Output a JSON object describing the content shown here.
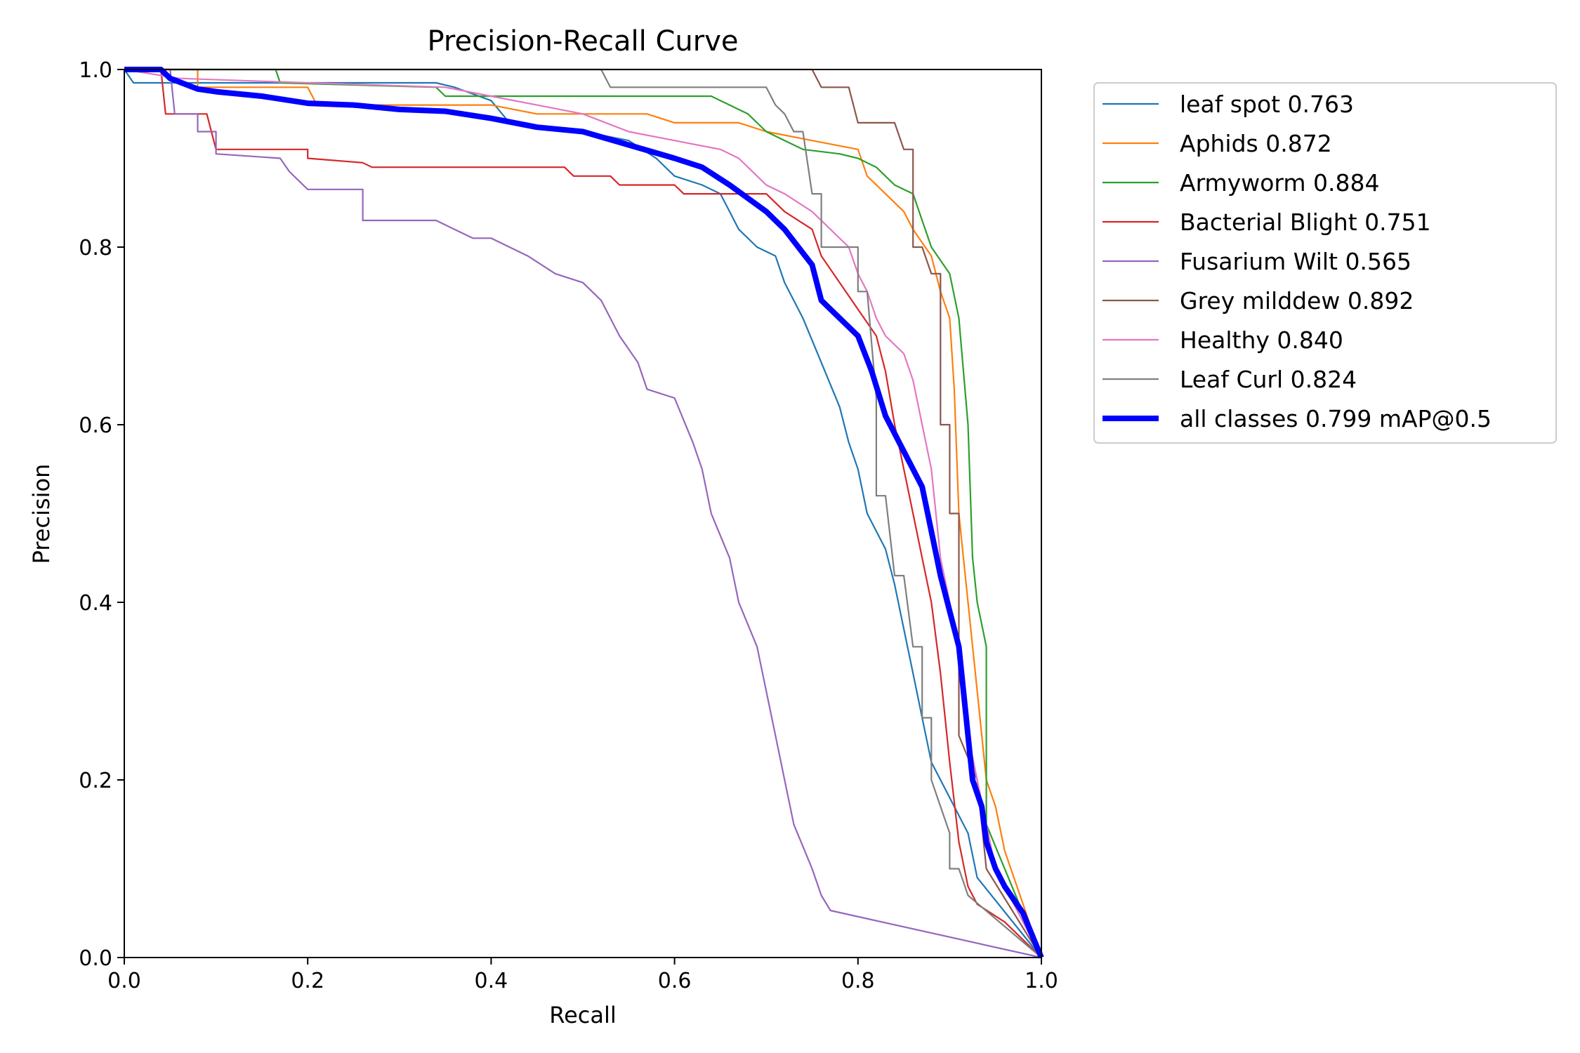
{
  "chart_data": {
    "type": "line",
    "title": "Precision-Recall Curve",
    "xlabel": "Recall",
    "ylabel": "Precision",
    "xlim": [
      0,
      1
    ],
    "ylim": [
      0,
      1
    ],
    "xticks": [
      "0.0",
      "0.2",
      "0.4",
      "0.6",
      "0.8",
      "1.0"
    ],
    "yticks": [
      "0.0",
      "0.2",
      "0.4",
      "0.6",
      "0.8",
      "1.0"
    ],
    "grid": false,
    "legend_position": "outside-top-right",
    "series": [
      {
        "name": "leaf spot 0.763",
        "color": "#1f77b4",
        "width": "thin",
        "points": [
          [
            0,
            1
          ],
          [
            0.01,
            0.985
          ],
          [
            0.1,
            0.985
          ],
          [
            0.34,
            0.985
          ],
          [
            0.36,
            0.98
          ],
          [
            0.4,
            0.965
          ],
          [
            0.42,
            0.94
          ],
          [
            0.5,
            0.93
          ],
          [
            0.55,
            0.92
          ],
          [
            0.58,
            0.9
          ],
          [
            0.6,
            0.88
          ],
          [
            0.63,
            0.87
          ],
          [
            0.65,
            0.86
          ],
          [
            0.66,
            0.84
          ],
          [
            0.67,
            0.82
          ],
          [
            0.69,
            0.8
          ],
          [
            0.71,
            0.79
          ],
          [
            0.72,
            0.76
          ],
          [
            0.74,
            0.72
          ],
          [
            0.76,
            0.67
          ],
          [
            0.78,
            0.62
          ],
          [
            0.79,
            0.58
          ],
          [
            0.8,
            0.55
          ],
          [
            0.81,
            0.5
          ],
          [
            0.83,
            0.46
          ],
          [
            0.84,
            0.42
          ],
          [
            0.85,
            0.37
          ],
          [
            0.86,
            0.32
          ],
          [
            0.87,
            0.27
          ],
          [
            0.88,
            0.22
          ],
          [
            0.9,
            0.18
          ],
          [
            0.92,
            0.14
          ],
          [
            0.93,
            0.09
          ],
          [
            1,
            0
          ]
        ]
      },
      {
        "name": "Aphids 0.872",
        "color": "#ff7f0e",
        "width": "thin",
        "points": [
          [
            0,
            1
          ],
          [
            0.08,
            1
          ],
          [
            0.08,
            0.98
          ],
          [
            0.2,
            0.98
          ],
          [
            0.21,
            0.96
          ],
          [
            0.4,
            0.96
          ],
          [
            0.45,
            0.95
          ],
          [
            0.57,
            0.95
          ],
          [
            0.6,
            0.94
          ],
          [
            0.67,
            0.94
          ],
          [
            0.7,
            0.93
          ],
          [
            0.75,
            0.92
          ],
          [
            0.8,
            0.91
          ],
          [
            0.81,
            0.88
          ],
          [
            0.83,
            0.86
          ],
          [
            0.85,
            0.84
          ],
          [
            0.86,
            0.82
          ],
          [
            0.88,
            0.79
          ],
          [
            0.89,
            0.75
          ],
          [
            0.9,
            0.72
          ],
          [
            0.905,
            0.64
          ],
          [
            0.91,
            0.5
          ],
          [
            0.92,
            0.4
          ],
          [
            0.93,
            0.3
          ],
          [
            0.94,
            0.2
          ],
          [
            0.95,
            0.17
          ],
          [
            0.96,
            0.12
          ],
          [
            1,
            0
          ]
        ]
      },
      {
        "name": "Armyworm 0.884",
        "color": "#2ca02c",
        "width": "thin",
        "points": [
          [
            0,
            1
          ],
          [
            0.165,
            1
          ],
          [
            0.17,
            0.985
          ],
          [
            0.34,
            0.98
          ],
          [
            0.35,
            0.97
          ],
          [
            0.64,
            0.97
          ],
          [
            0.66,
            0.96
          ],
          [
            0.68,
            0.95
          ],
          [
            0.7,
            0.93
          ],
          [
            0.72,
            0.92
          ],
          [
            0.74,
            0.91
          ],
          [
            0.78,
            0.905
          ],
          [
            0.8,
            0.9
          ],
          [
            0.82,
            0.89
          ],
          [
            0.84,
            0.87
          ],
          [
            0.86,
            0.86
          ],
          [
            0.87,
            0.83
          ],
          [
            0.88,
            0.8
          ],
          [
            0.9,
            0.77
          ],
          [
            0.91,
            0.72
          ],
          [
            0.92,
            0.6
          ],
          [
            0.925,
            0.45
          ],
          [
            0.93,
            0.4
          ],
          [
            0.94,
            0.35
          ],
          [
            0.94,
            0.15
          ],
          [
            1,
            0
          ]
        ]
      },
      {
        "name": "Bacterial Blight 0.751",
        "color": "#d62728",
        "width": "thin",
        "points": [
          [
            0,
            1
          ],
          [
            0.04,
            1
          ],
          [
            0.045,
            0.95
          ],
          [
            0.09,
            0.95
          ],
          [
            0.1,
            0.91
          ],
          [
            0.2,
            0.91
          ],
          [
            0.2,
            0.9
          ],
          [
            0.26,
            0.895
          ],
          [
            0.27,
            0.89
          ],
          [
            0.48,
            0.89
          ],
          [
            0.49,
            0.88
          ],
          [
            0.53,
            0.88
          ],
          [
            0.54,
            0.87
          ],
          [
            0.6,
            0.87
          ],
          [
            0.61,
            0.86
          ],
          [
            0.7,
            0.86
          ],
          [
            0.72,
            0.84
          ],
          [
            0.75,
            0.82
          ],
          [
            0.76,
            0.79
          ],
          [
            0.78,
            0.76
          ],
          [
            0.8,
            0.73
          ],
          [
            0.82,
            0.7
          ],
          [
            0.83,
            0.66
          ],
          [
            0.84,
            0.6
          ],
          [
            0.85,
            0.55
          ],
          [
            0.86,
            0.5
          ],
          [
            0.87,
            0.45
          ],
          [
            0.88,
            0.4
          ],
          [
            0.89,
            0.32
          ],
          [
            0.9,
            0.22
          ],
          [
            0.91,
            0.13
          ],
          [
            0.92,
            0.08
          ],
          [
            0.93,
            0.06
          ],
          [
            0.96,
            0.04
          ],
          [
            1,
            0
          ]
        ]
      },
      {
        "name": "Fusarium Wilt 0.565",
        "color": "#9467bd",
        "width": "thin",
        "points": [
          [
            0,
            1
          ],
          [
            0.05,
            1
          ],
          [
            0.055,
            0.95
          ],
          [
            0.08,
            0.95
          ],
          [
            0.08,
            0.93
          ],
          [
            0.1,
            0.93
          ],
          [
            0.1,
            0.905
          ],
          [
            0.17,
            0.9
          ],
          [
            0.18,
            0.885
          ],
          [
            0.2,
            0.865
          ],
          [
            0.26,
            0.865
          ],
          [
            0.26,
            0.83
          ],
          [
            0.34,
            0.83
          ],
          [
            0.36,
            0.82
          ],
          [
            0.38,
            0.81
          ],
          [
            0.4,
            0.81
          ],
          [
            0.42,
            0.8
          ],
          [
            0.44,
            0.79
          ],
          [
            0.47,
            0.77
          ],
          [
            0.5,
            0.76
          ],
          [
            0.52,
            0.74
          ],
          [
            0.54,
            0.7
          ],
          [
            0.56,
            0.67
          ],
          [
            0.57,
            0.64
          ],
          [
            0.6,
            0.63
          ],
          [
            0.62,
            0.58
          ],
          [
            0.63,
            0.55
          ],
          [
            0.64,
            0.5
          ],
          [
            0.66,
            0.45
          ],
          [
            0.67,
            0.4
          ],
          [
            0.69,
            0.35
          ],
          [
            0.7,
            0.3
          ],
          [
            0.71,
            0.25
          ],
          [
            0.72,
            0.2
          ],
          [
            0.73,
            0.15
          ],
          [
            0.75,
            0.1
          ],
          [
            0.76,
            0.07
          ],
          [
            0.77,
            0.053
          ],
          [
            1,
            0
          ]
        ]
      },
      {
        "name": "Grey milddew 0.892",
        "color": "#8c564b",
        "width": "thin",
        "points": [
          [
            0,
            1
          ],
          [
            0.75,
            1
          ],
          [
            0.76,
            0.98
          ],
          [
            0.79,
            0.98
          ],
          [
            0.8,
            0.94
          ],
          [
            0.84,
            0.94
          ],
          [
            0.85,
            0.91
          ],
          [
            0.86,
            0.91
          ],
          [
            0.86,
            0.8
          ],
          [
            0.87,
            0.8
          ],
          [
            0.88,
            0.77
          ],
          [
            0.89,
            0.77
          ],
          [
            0.89,
            0.6
          ],
          [
            0.9,
            0.6
          ],
          [
            0.9,
            0.5
          ],
          [
            0.91,
            0.5
          ],
          [
            0.91,
            0.25
          ],
          [
            0.93,
            0.2
          ],
          [
            0.94,
            0.1
          ],
          [
            1,
            0
          ]
        ]
      },
      {
        "name": "Healthy 0.840",
        "color": "#e377c2",
        "width": "thin",
        "points": [
          [
            0,
            1
          ],
          [
            0.06,
            0.99
          ],
          [
            0.2,
            0.985
          ],
          [
            0.35,
            0.98
          ],
          [
            0.4,
            0.97
          ],
          [
            0.45,
            0.96
          ],
          [
            0.5,
            0.95
          ],
          [
            0.55,
            0.93
          ],
          [
            0.6,
            0.92
          ],
          [
            0.65,
            0.91
          ],
          [
            0.67,
            0.9
          ],
          [
            0.68,
            0.89
          ],
          [
            0.7,
            0.87
          ],
          [
            0.72,
            0.86
          ],
          [
            0.75,
            0.84
          ],
          [
            0.77,
            0.82
          ],
          [
            0.79,
            0.8
          ],
          [
            0.8,
            0.77
          ],
          [
            0.81,
            0.75
          ],
          [
            0.82,
            0.72
          ],
          [
            0.83,
            0.7
          ],
          [
            0.85,
            0.68
          ],
          [
            0.86,
            0.65
          ],
          [
            0.87,
            0.6
          ],
          [
            0.88,
            0.55
          ],
          [
            0.885,
            0.5
          ],
          [
            0.89,
            0.45
          ],
          [
            0.9,
            0.4
          ],
          [
            0.91,
            0.35
          ],
          [
            0.915,
            0.3
          ],
          [
            0.92,
            0.25
          ],
          [
            0.93,
            0.2
          ],
          [
            0.94,
            0.15
          ],
          [
            0.95,
            0.1
          ],
          [
            1,
            0
          ]
        ]
      },
      {
        "name": "Leaf Curl 0.824",
        "color": "#7f7f7f",
        "width": "thin",
        "points": [
          [
            0,
            1
          ],
          [
            0.52,
            1
          ],
          [
            0.53,
            0.98
          ],
          [
            0.7,
            0.98
          ],
          [
            0.71,
            0.96
          ],
          [
            0.72,
            0.95
          ],
          [
            0.73,
            0.93
          ],
          [
            0.74,
            0.93
          ],
          [
            0.75,
            0.86
          ],
          [
            0.76,
            0.86
          ],
          [
            0.76,
            0.8
          ],
          [
            0.8,
            0.8
          ],
          [
            0.8,
            0.75
          ],
          [
            0.81,
            0.75
          ],
          [
            0.82,
            0.63
          ],
          [
            0.82,
            0.52
          ],
          [
            0.83,
            0.52
          ],
          [
            0.84,
            0.43
          ],
          [
            0.85,
            0.43
          ],
          [
            0.86,
            0.35
          ],
          [
            0.87,
            0.35
          ],
          [
            0.87,
            0.27
          ],
          [
            0.88,
            0.27
          ],
          [
            0.88,
            0.2
          ],
          [
            0.9,
            0.14
          ],
          [
            0.9,
            0.1
          ],
          [
            0.91,
            0.1
          ],
          [
            0.92,
            0.07
          ],
          [
            1,
            0
          ]
        ]
      },
      {
        "name": "all classes 0.799 mAP@0.5",
        "color": "#0000ff",
        "width": "thick",
        "points": [
          [
            0,
            1
          ],
          [
            0.04,
            1
          ],
          [
            0.05,
            0.99
          ],
          [
            0.08,
            0.978
          ],
          [
            0.1,
            0.975
          ],
          [
            0.15,
            0.97
          ],
          [
            0.2,
            0.962
          ],
          [
            0.25,
            0.96
          ],
          [
            0.3,
            0.955
          ],
          [
            0.35,
            0.953
          ],
          [
            0.4,
            0.945
          ],
          [
            0.45,
            0.935
          ],
          [
            0.5,
            0.93
          ],
          [
            0.55,
            0.915
          ],
          [
            0.6,
            0.9
          ],
          [
            0.63,
            0.89
          ],
          [
            0.66,
            0.87
          ],
          [
            0.7,
            0.84
          ],
          [
            0.72,
            0.82
          ],
          [
            0.75,
            0.78
          ],
          [
            0.76,
            0.74
          ],
          [
            0.8,
            0.7
          ],
          [
            0.815,
            0.66
          ],
          [
            0.83,
            0.61
          ],
          [
            0.85,
            0.57
          ],
          [
            0.87,
            0.53
          ],
          [
            0.88,
            0.48
          ],
          [
            0.89,
            0.43
          ],
          [
            0.9,
            0.39
          ],
          [
            0.91,
            0.35
          ],
          [
            0.915,
            0.3
          ],
          [
            0.92,
            0.25
          ],
          [
            0.925,
            0.2
          ],
          [
            0.935,
            0.17
          ],
          [
            0.94,
            0.13
          ],
          [
            0.95,
            0.1
          ],
          [
            0.96,
            0.08
          ],
          [
            0.98,
            0.05
          ],
          [
            1,
            0
          ]
        ]
      }
    ]
  }
}
